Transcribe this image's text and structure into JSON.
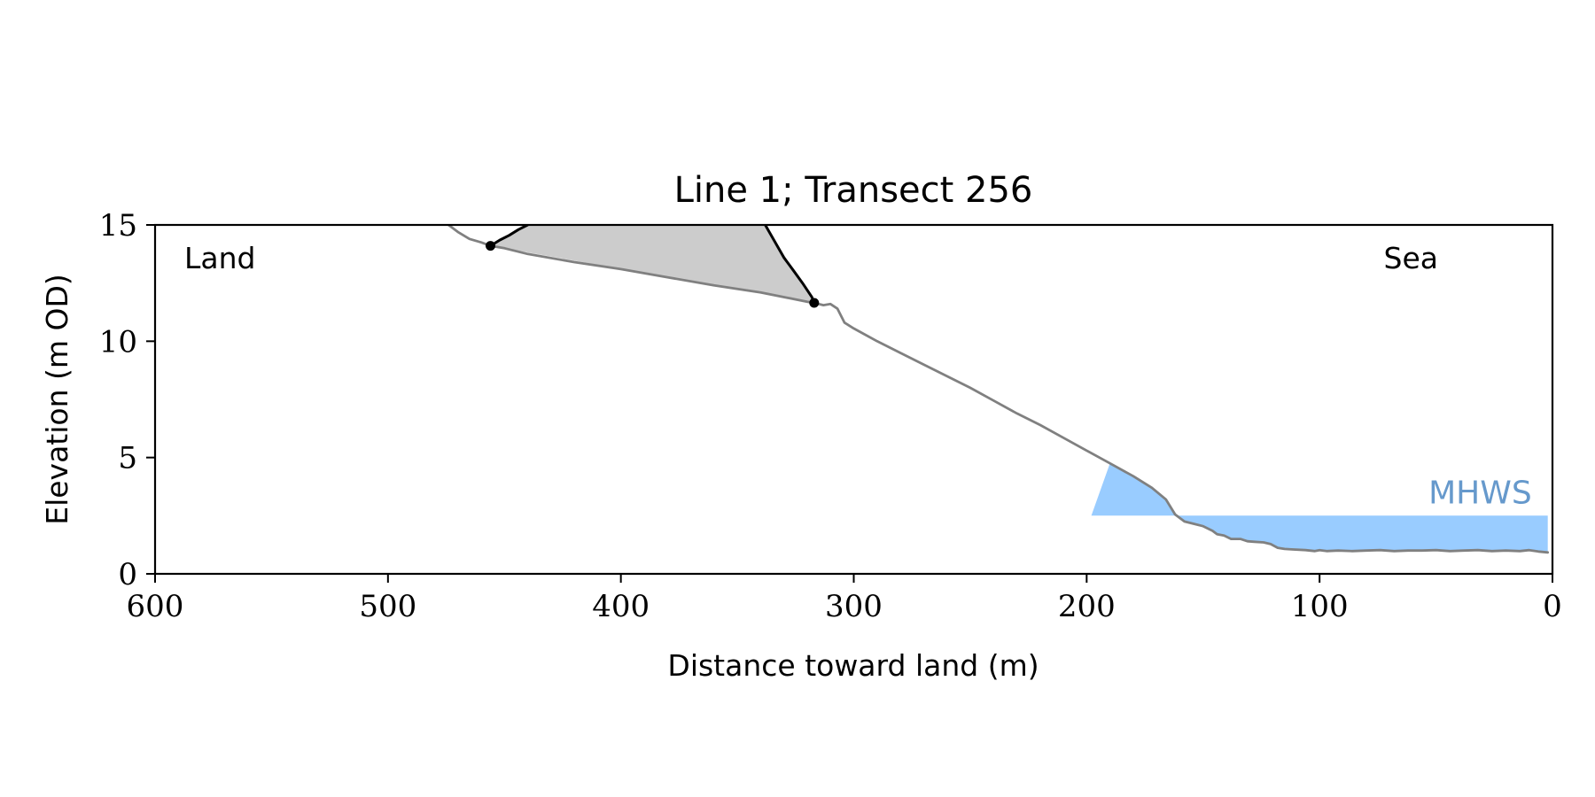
{
  "chart_data": {
    "type": "area",
    "title": "Line 1; Transect 256",
    "xlabel": "Distance toward land (m)",
    "ylabel": "Elevation (m OD)",
    "xlim": [
      600,
      0
    ],
    "ylim": [
      0,
      15
    ],
    "x_ticks": [
      600,
      500,
      400,
      300,
      200,
      100,
      0
    ],
    "y_ticks": [
      0,
      5,
      10,
      15
    ],
    "grid": false,
    "corner_labels": {
      "land": "Land",
      "sea": "Sea"
    },
    "series": [
      {
        "role": "ground-profile",
        "color": "#808080",
        "points": [
          [
            474,
            15.0
          ],
          [
            470,
            14.7
          ],
          [
            465,
            14.4
          ],
          [
            460,
            14.25
          ],
          [
            456,
            14.1
          ],
          [
            450,
            14.0
          ],
          [
            440,
            13.75
          ],
          [
            420,
            13.4
          ],
          [
            400,
            13.1
          ],
          [
            380,
            12.75
          ],
          [
            360,
            12.4
          ],
          [
            340,
            12.1
          ],
          [
            320,
            11.7
          ],
          [
            317,
            11.65
          ],
          [
            313,
            11.55
          ],
          [
            310,
            11.6
          ],
          [
            307,
            11.4
          ],
          [
            304,
            10.8
          ],
          [
            300,
            10.55
          ],
          [
            290,
            10.0
          ],
          [
            280,
            9.5
          ],
          [
            270,
            9.0
          ],
          [
            260,
            8.5
          ],
          [
            250,
            8.0
          ],
          [
            240,
            7.45
          ],
          [
            230,
            6.9
          ],
          [
            220,
            6.4
          ],
          [
            210,
            5.85
          ],
          [
            200,
            5.3
          ],
          [
            190,
            4.75
          ],
          [
            180,
            4.2
          ],
          [
            172,
            3.7
          ],
          [
            166,
            3.2
          ],
          [
            162,
            2.55
          ],
          [
            158,
            2.25
          ],
          [
            154,
            2.15
          ],
          [
            150,
            2.05
          ],
          [
            146,
            1.85
          ],
          [
            144,
            1.7
          ],
          [
            141,
            1.65
          ],
          [
            138,
            1.5
          ],
          [
            134,
            1.5
          ],
          [
            131,
            1.4
          ],
          [
            128,
            1.38
          ],
          [
            124,
            1.35
          ],
          [
            121,
            1.28
          ],
          [
            118,
            1.12
          ],
          [
            115,
            1.07
          ],
          [
            112,
            1.05
          ],
          [
            106,
            1.02
          ],
          [
            102,
            0.98
          ],
          [
            100,
            1.02
          ],
          [
            97,
            0.98
          ],
          [
            92,
            1.0
          ],
          [
            86,
            0.98
          ],
          [
            80,
            1.0
          ],
          [
            74,
            1.02
          ],
          [
            68,
            0.98
          ],
          [
            62,
            1.0
          ],
          [
            56,
            1.0
          ],
          [
            50,
            1.02
          ],
          [
            44,
            0.98
          ],
          [
            38,
            1.0
          ],
          [
            32,
            1.02
          ],
          [
            26,
            0.98
          ],
          [
            20,
            1.0
          ],
          [
            14,
            0.98
          ],
          [
            10,
            1.02
          ],
          [
            6,
            0.96
          ],
          [
            2,
            0.92
          ]
        ]
      },
      {
        "role": "cliff-top-line",
        "color": "#000000",
        "points": [
          [
            456,
            14.1
          ],
          [
            452,
            14.35
          ],
          [
            448,
            14.55
          ],
          [
            444,
            14.8
          ],
          [
            440,
            15.0
          ]
        ]
      },
      {
        "role": "cliff-face-line",
        "color": "#000000",
        "points": [
          [
            338,
            15.0
          ],
          [
            334,
            14.3
          ],
          [
            330,
            13.6
          ],
          [
            326,
            13.05
          ],
          [
            322,
            12.5
          ],
          [
            318,
            11.9
          ],
          [
            317,
            11.65
          ]
        ]
      }
    ],
    "markers": [
      {
        "x": 456,
        "y": 14.1,
        "color": "#000000"
      },
      {
        "x": 317,
        "y": 11.65,
        "color": "#000000"
      }
    ],
    "shaded_region": {
      "color": "#cccccc",
      "polygon": [
        [
          456,
          14.1
        ],
        [
          440,
          15.0
        ],
        [
          338,
          15.0
        ],
        [
          317,
          11.65
        ]
      ]
    },
    "water": {
      "label": "MHWS",
      "label_color": "#6699cc",
      "fill_color": "#99ccff",
      "level": 2.5,
      "x_from": 198,
      "x_to": 2
    }
  }
}
